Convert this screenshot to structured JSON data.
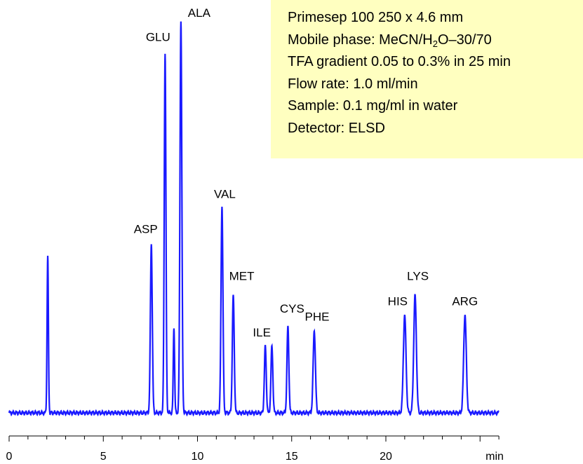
{
  "info": {
    "line1": "Primesep 100  250 x 4.6 mm",
    "line2_pre": "Mobile phase: MeCN/H",
    "line2_sub": "2",
    "line2_post": "O–30/70",
    "line3": "TFA gradient 0.05 to 0.3% in 25 min",
    "line4": "Flow rate: 1.0 ml/min",
    "line5": "Sample: 0.1 mg/ml in water",
    "line6": "Detector: ELSD"
  },
  "chart_data": {
    "type": "line",
    "title": "",
    "xlabel": "min",
    "ylabel": "",
    "xlim": [
      0,
      26
    ],
    "x_ticks": [
      0,
      5,
      10,
      15,
      20
    ],
    "x_tick_labels": [
      "0",
      "5",
      "10",
      "15",
      "20"
    ],
    "line_color": "#1a1aff",
    "peaks": [
      {
        "name": "",
        "time": 2.05,
        "height": 0.4,
        "width": 0.035
      },
      {
        "name": "ASP",
        "time": 7.55,
        "height": 0.43,
        "width": 0.05
      },
      {
        "name": "GLU",
        "time": 8.28,
        "height": 0.92,
        "width": 0.045
      },
      {
        "name": "",
        "time": 8.75,
        "height": 0.22,
        "width": 0.035
      },
      {
        "name": "ALA",
        "time": 9.12,
        "height": 1.0,
        "width": 0.05
      },
      {
        "name": "VAL",
        "time": 11.3,
        "height": 0.53,
        "width": 0.05
      },
      {
        "name": "MET",
        "time": 11.9,
        "height": 0.3,
        "width": 0.05
      },
      {
        "name": "ILE",
        "time": 13.6,
        "height": 0.17,
        "width": 0.05
      },
      {
        "name": "",
        "time": 13.95,
        "height": 0.17,
        "width": 0.05
      },
      {
        "name": "CYS",
        "time": 14.8,
        "height": 0.22,
        "width": 0.05
      },
      {
        "name": "PHE",
        "time": 16.2,
        "height": 0.21,
        "width": 0.06
      },
      {
        "name": "HIS",
        "time": 21.0,
        "height": 0.25,
        "width": 0.07
      },
      {
        "name": "LYS",
        "time": 21.55,
        "height": 0.3,
        "width": 0.07
      },
      {
        "name": "ARG",
        "time": 24.2,
        "height": 0.25,
        "width": 0.07
      }
    ]
  }
}
